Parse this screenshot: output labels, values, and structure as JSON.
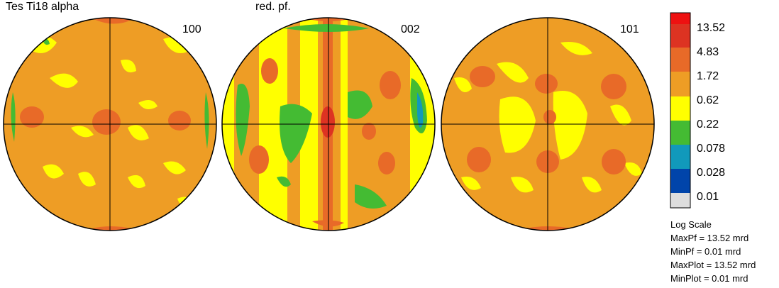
{
  "title": "Tes Ti18 alpha",
  "subtitle": "red. pf.",
  "poles": [
    {
      "label": "100"
    },
    {
      "label": "002"
    },
    {
      "label": "101"
    }
  ],
  "legend": {
    "levels": [
      "13.52",
      "4.83",
      "1.72",
      "0.62",
      "0.22",
      "0.078",
      "0.028",
      "0.01"
    ],
    "colors": [
      "#ee1111",
      "#dd3322",
      "#e86a28",
      "#ee9d25",
      "#ffff00",
      "#44bb33",
      "#1199bb",
      "#0044aa",
      "#dddddd"
    ]
  },
  "info": {
    "scale": "Log Scale",
    "max_pf": "MaxPf = 13.52 mrd",
    "min_pf": "MinPf = 0.01 mrd",
    "max_plot": "MaxPlot = 13.52 mrd",
    "min_plot": "MinPlot = 0.01 mrd"
  }
}
